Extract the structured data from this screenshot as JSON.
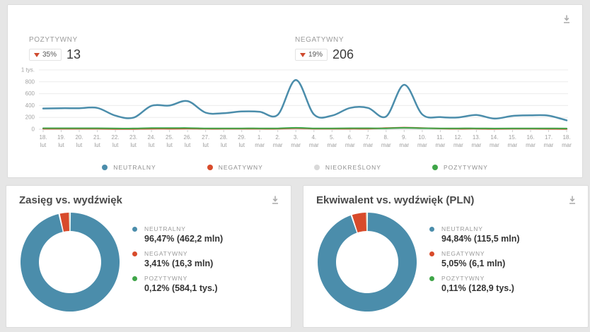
{
  "colors": {
    "neutral": "#4b8dab",
    "negative": "#d84b2b",
    "positive": "#3fa548",
    "undefined": "#d9d9d9",
    "grid": "#ececec",
    "axis_text": "#a3a3a3",
    "icon_gray": "#aeaeae"
  },
  "top_panel": {
    "stats": [
      {
        "label": "POZYTYWNY",
        "change": "35%",
        "direction": "down",
        "value": "13"
      },
      {
        "label": "NEGATYWNY",
        "change": "19%",
        "direction": "down",
        "value": "206"
      }
    ],
    "legend": [
      {
        "label": "NEUTRALNY",
        "color": "#4b8dab"
      },
      {
        "label": "NEGATYWNY",
        "color": "#d84b2b"
      },
      {
        "label": "NIEOKREŚLONY",
        "color": "#d9d9d9"
      },
      {
        "label": "POZYTYWNY",
        "color": "#3fa548"
      }
    ]
  },
  "chart_data": [
    {
      "type": "line",
      "title": "",
      "ylabel": "",
      "ylim": [
        0,
        1000
      ],
      "y_ticks": [
        {
          "v": 0,
          "label": "0"
        },
        {
          "v": 200,
          "label": "200"
        },
        {
          "v": 400,
          "label": "400"
        },
        {
          "v": 600,
          "label": "600"
        },
        {
          "v": 800,
          "label": "800"
        },
        {
          "v": 1000,
          "label": "1 tys."
        }
      ],
      "x_labels": [
        {
          "day": "18.",
          "month": "lut"
        },
        {
          "day": "19.",
          "month": "lut"
        },
        {
          "day": "20.",
          "month": "lut"
        },
        {
          "day": "21.",
          "month": "lut"
        },
        {
          "day": "22.",
          "month": "lut"
        },
        {
          "day": "23.",
          "month": "lut"
        },
        {
          "day": "24.",
          "month": "lut"
        },
        {
          "day": "25.",
          "month": "lut"
        },
        {
          "day": "26.",
          "month": "lut"
        },
        {
          "day": "27.",
          "month": "lut"
        },
        {
          "day": "28.",
          "month": "lut"
        },
        {
          "day": "29.",
          "month": "lut"
        },
        {
          "day": "1.",
          "month": "mar"
        },
        {
          "day": "2.",
          "month": "mar"
        },
        {
          "day": "3.",
          "month": "mar"
        },
        {
          "day": "4.",
          "month": "mar"
        },
        {
          "day": "5.",
          "month": "mar"
        },
        {
          "day": "6.",
          "month": "mar"
        },
        {
          "day": "7.",
          "month": "mar"
        },
        {
          "day": "8.",
          "month": "mar"
        },
        {
          "day": "9.",
          "month": "mar"
        },
        {
          "day": "10.",
          "month": "mar"
        },
        {
          "day": "11.",
          "month": "mar"
        },
        {
          "day": "12.",
          "month": "mar"
        },
        {
          "day": "13.",
          "month": "mar"
        },
        {
          "day": "14.",
          "month": "mar"
        },
        {
          "day": "15.",
          "month": "mar"
        },
        {
          "day": "16.",
          "month": "mar"
        },
        {
          "day": "17.",
          "month": "mar"
        },
        {
          "day": "18.",
          "month": "mar"
        }
      ],
      "series": [
        {
          "name": "NIEOKREŚLONY",
          "color": "#d9d9d9",
          "width": 2,
          "values": [
            2,
            2,
            2,
            2,
            2,
            2,
            2,
            2,
            2,
            2,
            2,
            2,
            2,
            2,
            3,
            2,
            2,
            2,
            2,
            2,
            3,
            2,
            2,
            2,
            2,
            2,
            2,
            2,
            2,
            2
          ]
        },
        {
          "name": "NEGATYWNY",
          "color": "#d84b2b",
          "width": 2,
          "values": [
            8,
            8,
            8,
            8,
            5,
            5,
            10,
            10,
            12,
            8,
            8,
            8,
            8,
            8,
            18,
            10,
            8,
            10,
            10,
            20,
            28,
            22,
            12,
            8,
            10,
            6,
            8,
            8,
            6,
            5
          ]
        },
        {
          "name": "POZYTYWNY",
          "color": "#3fa548",
          "width": 2,
          "values": [
            18,
            18,
            18,
            18,
            15,
            14,
            20,
            20,
            22,
            16,
            16,
            16,
            16,
            15,
            25,
            16,
            15,
            18,
            18,
            16,
            25,
            18,
            15,
            15,
            16,
            13,
            15,
            16,
            15,
            13
          ]
        },
        {
          "name": "NEUTRALNY",
          "color": "#4b8dab",
          "width": 2.5,
          "values": [
            350,
            355,
            355,
            360,
            230,
            195,
            395,
            400,
            475,
            280,
            270,
            300,
            295,
            245,
            830,
            250,
            230,
            360,
            360,
            215,
            750,
            250,
            205,
            200,
            240,
            180,
            225,
            235,
            230,
            150
          ]
        }
      ]
    },
    {
      "type": "donut",
      "title": "Zasięg vs. wydźwięk",
      "slices": [
        {
          "label": "NEUTRALNY",
          "pct": 96.47,
          "pct_label": "96,47%",
          "value_label": "(462,2 mln)",
          "color": "#4b8dab"
        },
        {
          "label": "NEGATYWNY",
          "pct": 3.41,
          "pct_label": "3,41%",
          "value_label": "(16,3 mln)",
          "color": "#d84b2b"
        },
        {
          "label": "POZYTYWNY",
          "pct": 0.12,
          "pct_label": "0,12%",
          "value_label": "(584,1 tys.)",
          "color": "#3fa548"
        }
      ]
    },
    {
      "type": "donut",
      "title": "Ekwiwalent vs. wydźwięk (PLN)",
      "slices": [
        {
          "label": "NEUTRALNY",
          "pct": 94.84,
          "pct_label": "94,84%",
          "value_label": "(115,5 mln)",
          "color": "#4b8dab"
        },
        {
          "label": "NEGATYWNY",
          "pct": 5.05,
          "pct_label": "5,05%",
          "value_label": "(6,1 mln)",
          "color": "#d84b2b"
        },
        {
          "label": "POZYTYWNY",
          "pct": 0.11,
          "pct_label": "0,11%",
          "value_label": "(128,9 tys.)",
          "color": "#3fa548"
        }
      ]
    }
  ]
}
